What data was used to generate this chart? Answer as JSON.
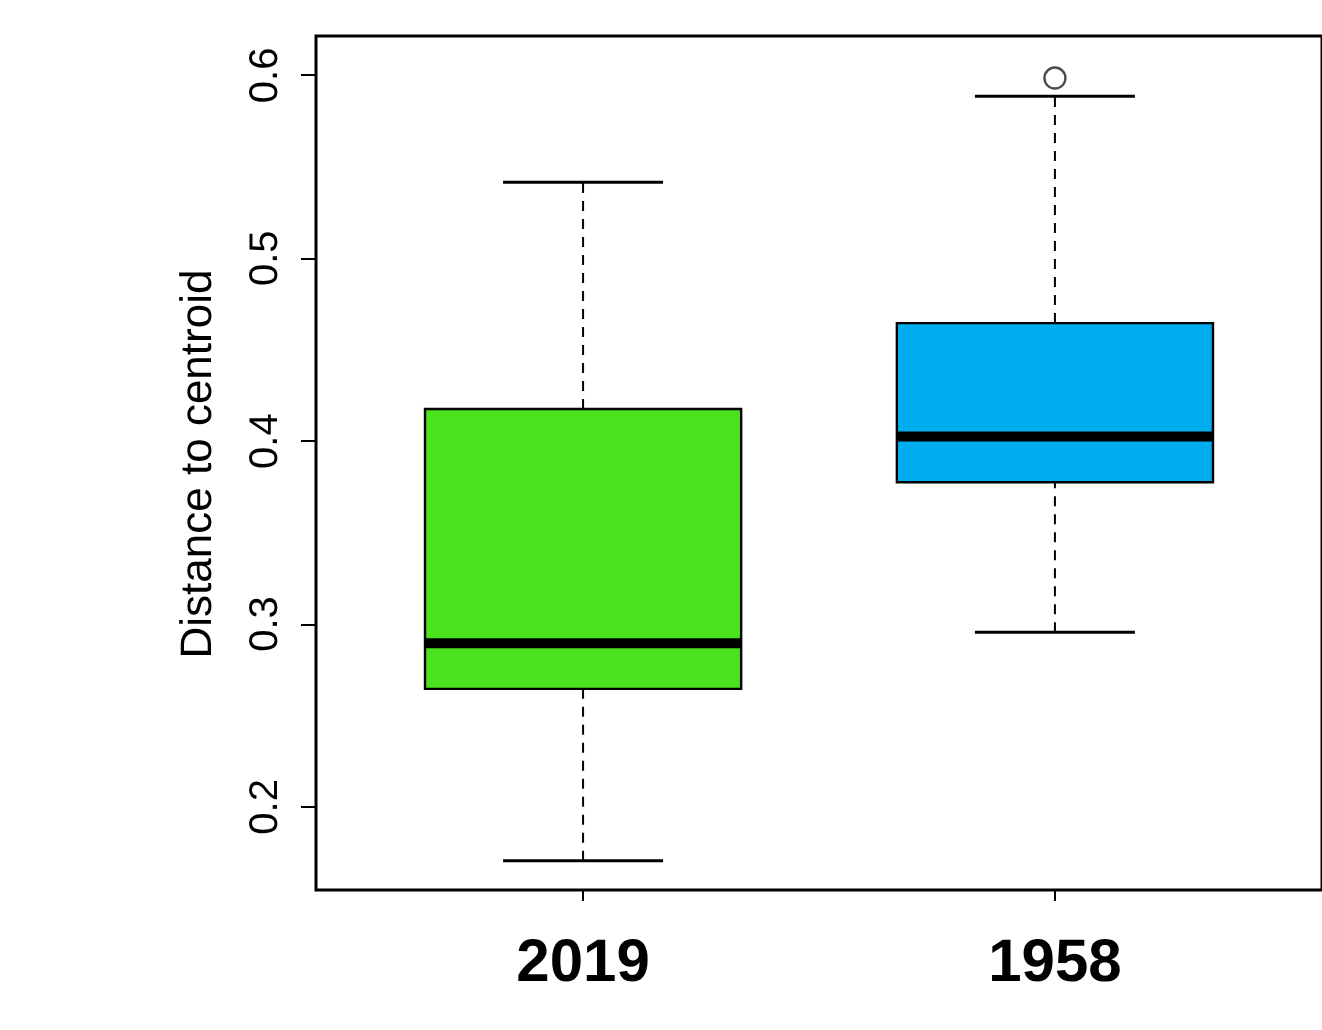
{
  "chart_data": {
    "type": "box",
    "ylabel": "Distance to centroid",
    "categories": [
      "2019",
      "1958"
    ],
    "colors": [
      "#4be31e",
      "#00aeef"
    ],
    "boxes": [
      {
        "low": 0.17,
        "q1": 0.264,
        "median": 0.289,
        "q3": 0.417,
        "high": 0.541
      },
      {
        "low": 0.295,
        "q1": 0.377,
        "median": 0.402,
        "q3": 0.464,
        "high": 0.588,
        "outliers": [
          0.598
        ]
      }
    ],
    "ylim": [
      0.154,
      0.621
    ],
    "yticks": [
      0.2,
      0.3,
      0.4,
      0.5,
      0.6
    ],
    "grid": false,
    "line_style": "dashed",
    "marker": "circle"
  }
}
